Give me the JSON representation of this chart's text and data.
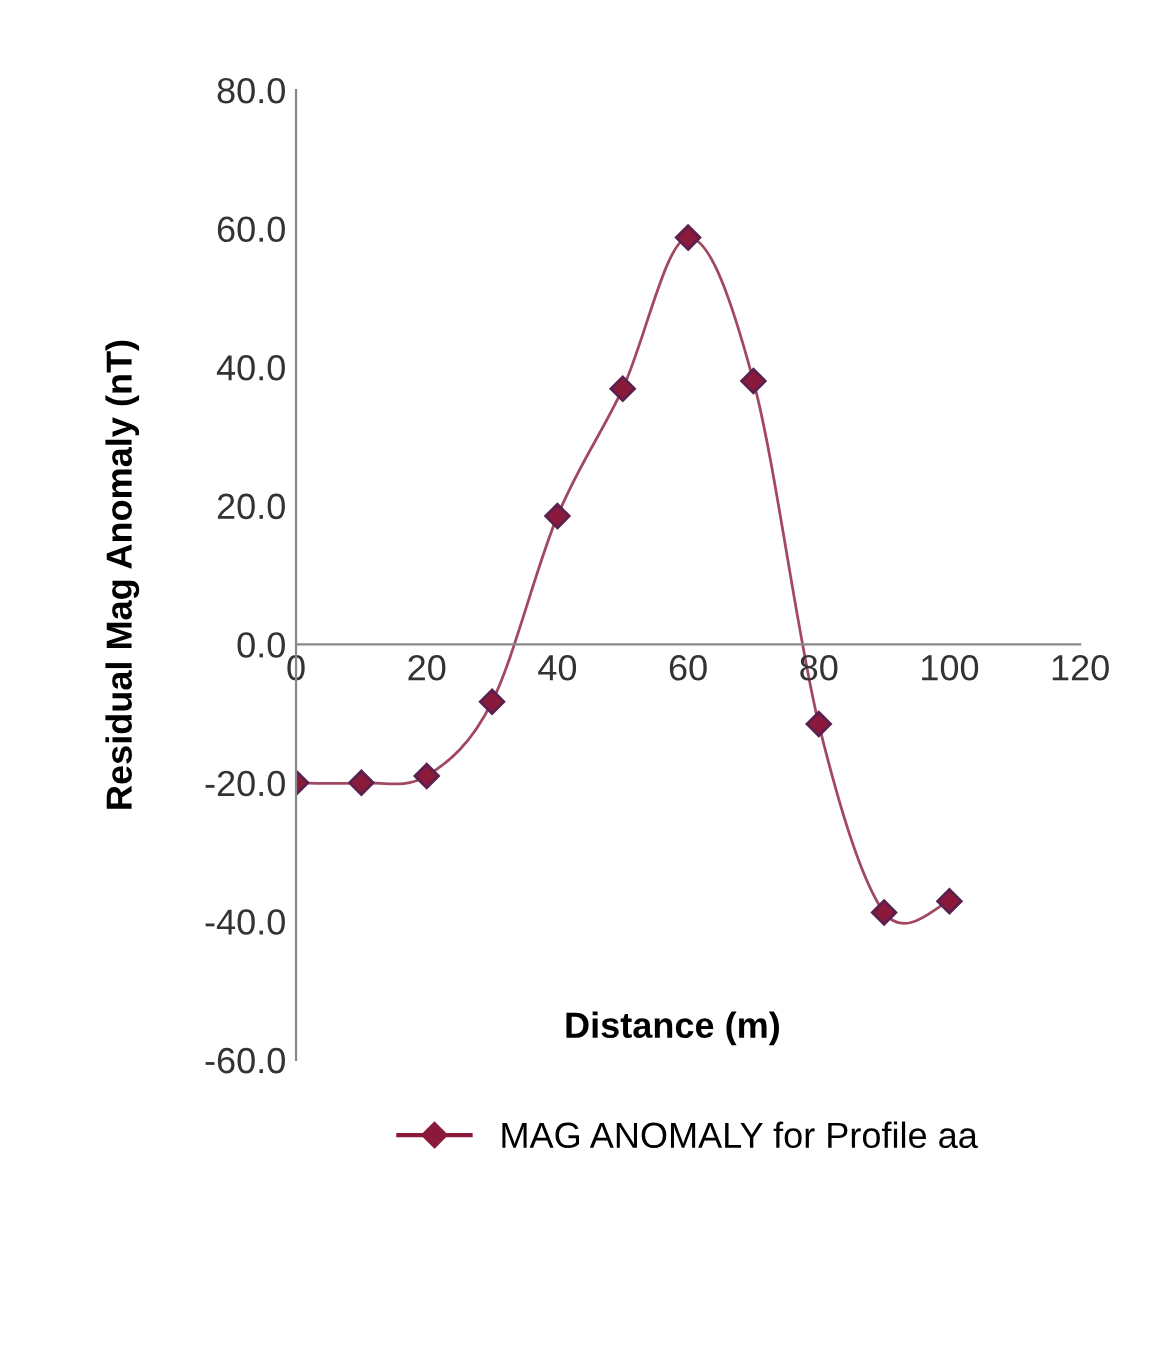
{
  "chart_data": {
    "type": "line",
    "xlabel": "Distance (m)",
    "ylabel": "Residual Mag Anomaly (nT)",
    "x": [
      0,
      10,
      20,
      30,
      40,
      50,
      60,
      70,
      80,
      90,
      100
    ],
    "series": [
      {
        "name": "MAG ANOMALY for Profile aa",
        "color": "#8b1a3a",
        "values": [
          -20,
          -20,
          -19,
          -8.3,
          18.5,
          36.9,
          58.7,
          38,
          -11.5,
          -38.7,
          -37.1
        ]
      }
    ],
    "xlim": [
      0,
      120
    ],
    "xticks": [
      0,
      20,
      40,
      60,
      80,
      100,
      120
    ],
    "ylim": [
      -60,
      80
    ],
    "yticks": [
      {
        "value": -60,
        "label": "-60.0"
      },
      {
        "value": -40,
        "label": "-40.0"
      },
      {
        "value": -20,
        "label": "-20.0"
      },
      {
        "value": 0,
        "label": "0.0"
      },
      {
        "value": 20,
        "label": "20.0"
      },
      {
        "value": 40,
        "label": "40.0"
      },
      {
        "value": 60,
        "label": "60.0"
      },
      {
        "value": 80,
        "label": "80.0"
      }
    ],
    "marker": "diamond",
    "line_style": "solid",
    "grid": false,
    "legend": "bottom"
  }
}
